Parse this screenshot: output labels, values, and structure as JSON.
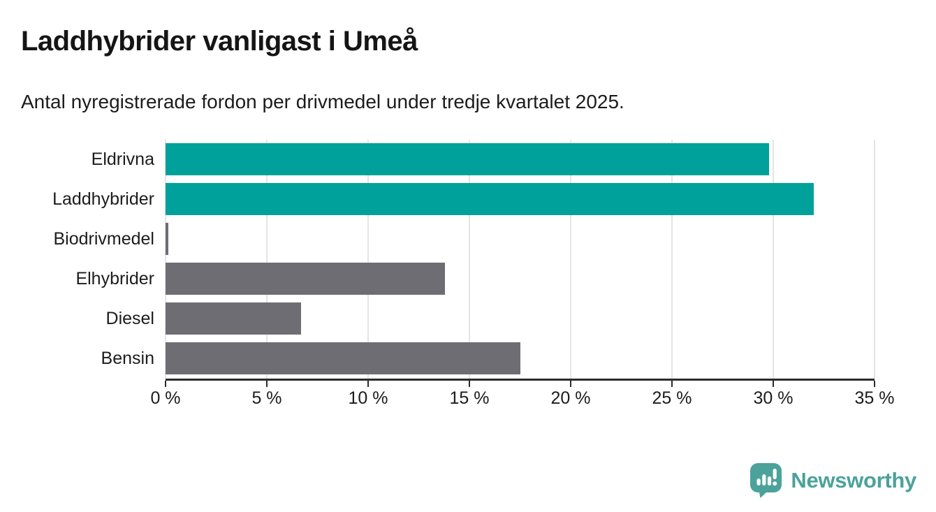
{
  "header": {
    "title": "Laddhybrider vanligast i Umeå",
    "subtitle": "Antal nyregistrerade fordon per drivmedel under tredje kvartalet 2025."
  },
  "chart_data": {
    "type": "bar",
    "orientation": "horizontal",
    "title": "Laddhybrider vanligast i Umeå",
    "subtitle": "Antal nyregistrerade fordon per drivmedel under tredje kvartalet 2025.",
    "unit": "%",
    "categories": [
      "Eldrivna",
      "Laddhybrider",
      "Biodrivmedel",
      "Elhybrider",
      "Diesel",
      "Bensin"
    ],
    "values": [
      29.8,
      32.0,
      0.15,
      13.8,
      6.7,
      17.5
    ],
    "bar_colors": [
      "#00a19a",
      "#00a19a",
      "#6e6d73",
      "#6e6d73",
      "#6e6d73",
      "#6e6d73"
    ],
    "highlight_color": "#00a19a",
    "neutral_color": "#6e6d73",
    "xlim": [
      0,
      35
    ],
    "x_ticks": [
      {
        "value": 0,
        "label": "0 %"
      },
      {
        "value": 5,
        "label": "5 %"
      },
      {
        "value": 10,
        "label": "10 %"
      },
      {
        "value": 15,
        "label": "15 %"
      },
      {
        "value": 20,
        "label": "20 %"
      },
      {
        "value": 25,
        "label": "25 %"
      },
      {
        "value": 30,
        "label": "30 %"
      },
      {
        "value": 35,
        "label": "35 %"
      }
    ],
    "grid": true,
    "gridline_color": "#e4e4e4",
    "axis_color": "#2b2b2b",
    "legend": "none"
  },
  "footer": {
    "brand": "Newsworthy",
    "brand_color": "#4ba29b"
  }
}
